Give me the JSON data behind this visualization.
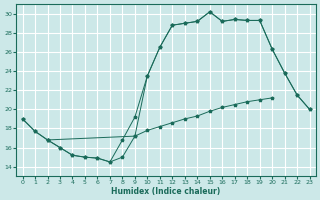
{
  "background_color": "#cce8e8",
  "grid_color": "#ffffff",
  "line_color": "#1a6b5a",
  "x_label": "Humidex (Indice chaleur)",
  "xlim": [
    -0.5,
    23.5
  ],
  "ylim": [
    13,
    31
  ],
  "yticks": [
    14,
    16,
    18,
    20,
    22,
    24,
    26,
    28,
    30
  ],
  "xticks": [
    0,
    1,
    2,
    3,
    4,
    5,
    6,
    7,
    8,
    9,
    10,
    11,
    12,
    13,
    14,
    15,
    16,
    17,
    18,
    19,
    20,
    21,
    22,
    23
  ],
  "curve1_x": [
    0,
    1,
    2,
    3,
    4,
    5,
    6,
    7,
    8,
    9,
    10,
    11,
    12,
    13,
    14,
    15,
    16,
    17,
    18,
    19,
    20
  ],
  "curve1_y": [
    19.0,
    17.7,
    16.8,
    16.0,
    15.2,
    15.0,
    14.9,
    14.5,
    15.0,
    17.2,
    17.8,
    18.2,
    18.6,
    19.0,
    19.3,
    19.8,
    20.2,
    20.5,
    20.8,
    21.0,
    21.2
  ],
  "curve2_x": [
    0,
    1,
    2,
    9,
    10,
    11,
    12,
    13,
    14,
    15,
    16,
    17,
    18,
    19,
    20,
    21,
    22,
    23
  ],
  "curve2_y": [
    19.0,
    17.7,
    16.8,
    17.2,
    23.5,
    26.5,
    28.8,
    29.0,
    29.2,
    30.2,
    29.2,
    29.4,
    29.3,
    29.3,
    26.3,
    23.8,
    21.5,
    20.0
  ],
  "curve3_x": [
    2,
    3,
    4,
    5,
    6,
    7,
    8,
    9,
    10,
    11,
    12,
    13,
    14,
    15,
    16,
    17,
    18,
    19,
    20,
    21,
    22,
    23
  ],
  "curve3_y": [
    16.8,
    16.0,
    15.2,
    15.0,
    14.9,
    14.5,
    16.8,
    19.2,
    23.5,
    26.5,
    28.8,
    29.0,
    29.2,
    30.2,
    29.2,
    29.4,
    29.3,
    29.3,
    26.3,
    23.8,
    21.5,
    20.0
  ]
}
